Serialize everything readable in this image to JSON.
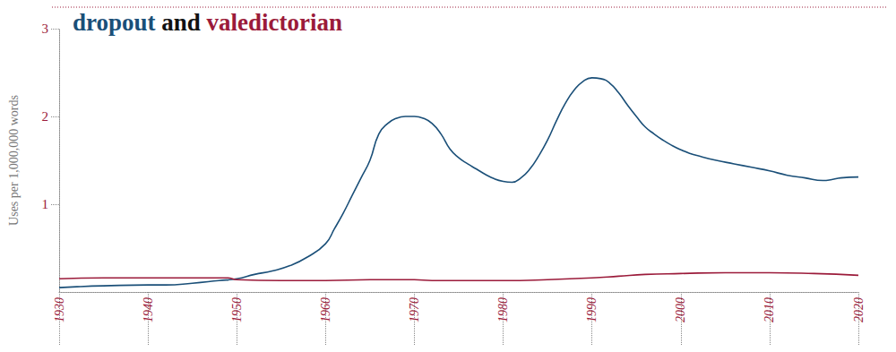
{
  "chart_data": {
    "type": "line",
    "title": "dropout and valedictorian",
    "y_label": "Uses per 1,000,000 words",
    "xlim": [
      1930,
      2020
    ],
    "xticks": [
      1930,
      1940,
      1950,
      1960,
      1970,
      1980,
      1990,
      2000,
      2010,
      2020
    ],
    "ylim": [
      0,
      3
    ],
    "yticks": [
      1,
      2,
      3
    ],
    "grid": false,
    "series": [
      {
        "name": "dropout",
        "color": "#1a4f78",
        "x": [
          1930,
          1932,
          1935,
          1940,
          1942,
          1945,
          1948,
          1950,
          1952,
          1954,
          1956,
          1958,
          1960,
          1961,
          1962,
          1963,
          1964,
          1965,
          1966,
          1967,
          1968,
          1969,
          1970,
          1971,
          1972,
          1973,
          1974,
          1975,
          1976,
          1977,
          1978,
          1979,
          1980,
          1981,
          1982,
          1983,
          1984,
          1985,
          1986,
          1987,
          1988,
          1989,
          1990,
          1991,
          1992,
          1993,
          1994,
          1995,
          1996,
          1997,
          1998,
          1999,
          2000,
          2001,
          2002,
          2004,
          2006,
          2008,
          2010,
          2012,
          2014,
          2016,
          2017,
          2018,
          2020
        ],
        "values": [
          0.05,
          0.06,
          0.07,
          0.08,
          0.08,
          0.1,
          0.13,
          0.15,
          0.2,
          0.24,
          0.3,
          0.4,
          0.55,
          0.72,
          0.9,
          1.1,
          1.3,
          1.5,
          1.8,
          1.92,
          1.98,
          2.0,
          2.0,
          1.98,
          1.92,
          1.8,
          1.63,
          1.53,
          1.46,
          1.4,
          1.34,
          1.29,
          1.26,
          1.25,
          1.3,
          1.4,
          1.55,
          1.73,
          1.95,
          2.15,
          2.3,
          2.4,
          2.44,
          2.43,
          2.38,
          2.27,
          2.13,
          2.0,
          1.88,
          1.8,
          1.73,
          1.67,
          1.62,
          1.58,
          1.55,
          1.5,
          1.46,
          1.42,
          1.38,
          1.33,
          1.3,
          1.27,
          1.28,
          1.3,
          1.31
        ]
      },
      {
        "name": "valedictorian",
        "color": "#9b1b3a",
        "x": [
          1930,
          1935,
          1940,
          1945,
          1949,
          1950,
          1955,
          1960,
          1965,
          1970,
          1972,
          1980,
          1985,
          1990,
          1993,
          1996,
          2000,
          2005,
          2010,
          2015,
          2020
        ],
        "values": [
          0.15,
          0.16,
          0.16,
          0.16,
          0.16,
          0.14,
          0.13,
          0.13,
          0.14,
          0.14,
          0.13,
          0.13,
          0.14,
          0.16,
          0.18,
          0.2,
          0.21,
          0.22,
          0.22,
          0.21,
          0.19
        ]
      }
    ]
  }
}
